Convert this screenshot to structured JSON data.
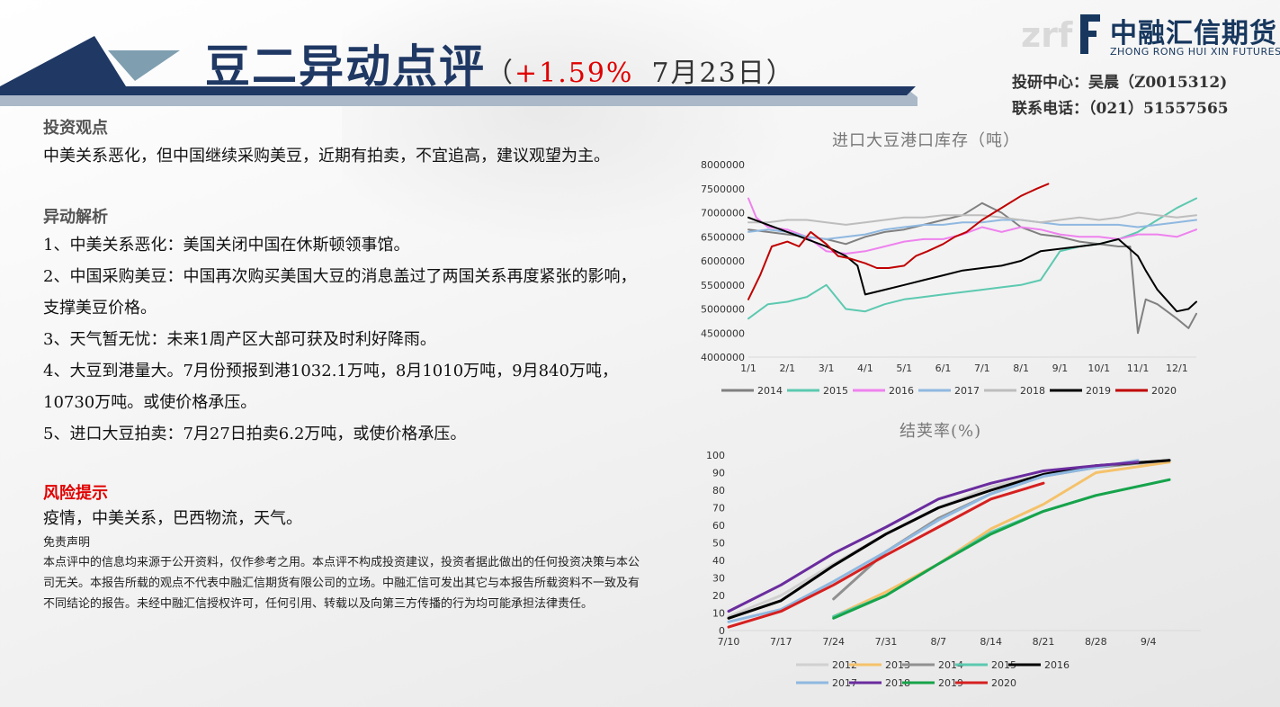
{
  "brand": {
    "cn": "中融汇信期货",
    "en": "ZHONG RONG HUI XIN FUTURES",
    "mark": "zrf"
  },
  "header": {
    "title": "豆二异动点评",
    "paren_open": "（",
    "change": "+1.59%",
    "date": "7月23日",
    "paren_close": "）"
  },
  "contact": {
    "line1": "投研中心：吴晨（Z0015312)",
    "line2": "联系电话：（021）51557565"
  },
  "colors": {
    "title": "#1f3864",
    "accent_red": "#e00000",
    "banner_dark": "#1f3864",
    "banner_light": "#7f9fb0"
  },
  "sections": {
    "view_title": "投资观点",
    "view_text": "中美关系恶化，但中国继续采购美豆，近期有拍卖，不宜追高，建议观望为主。",
    "analysis_title": "异动解析",
    "analysis_items": [
      "1、中美关系恶化：美国关闭中国在休斯顿领事馆。",
      "2、中国采购美豆：中国再次购买美国大豆的消息盖过了两国关系再度紧张的影响，支撑美豆价格。",
      "3、天气暂无忧：未来1周产区大部可获及时利好降雨。",
      "4、大豆到港量大。7月份预报到港1032.1万吨，8月1010万吨，9月840万吨，10730万吨。或使价格承压。",
      "5、进口大豆拍卖：7月27日拍卖6.2万吨，或使价格承压。"
    ],
    "risk_title": "风险提示",
    "risk_text": "疫情，中美关系，巴西物流，天气。",
    "disclaimer_title": "免责声明",
    "disclaimer_text": "本点评中的信息均来源于公开资料，仅作参考之用。本点评不构成投资建议，投资者据此做出的任何投资决策与本公司无关。本报告所载的观点不代表中融汇信期货有限公司的立场。中融汇信可发出其它与本报告所载资料不一致及有不同结论的报告。未经中融汇信授权许可，任何引用、转载以及向第三方传播的行为均可能承担法律责任。"
  },
  "chart_data": [
    {
      "type": "line",
      "title": "进口大豆港口库存（吨）",
      "x_labels": [
        "1/1",
        "2/1",
        "3/1",
        "4/1",
        "5/1",
        "6/1",
        "7/1",
        "8/1",
        "9/1",
        "10/1",
        "11/1",
        "12/1"
      ],
      "x_range": [
        1,
        12.5
      ],
      "ylim": [
        4000000,
        8000000
      ],
      "y_ticks": [
        4000000,
        4500000,
        5000000,
        5500000,
        6000000,
        6500000,
        7000000,
        7500000,
        8000000
      ],
      "grid": false,
      "legend_position": "bottom",
      "series": [
        {
          "name": "2014",
          "color": "#808080",
          "x": [
            1,
            1.5,
            2,
            2.5,
            3,
            3.5,
            4,
            4.5,
            5,
            5.5,
            6,
            6.5,
            7,
            7.5,
            8,
            8.5,
            9,
            9.5,
            10,
            10.5,
            10.8,
            11,
            11.2,
            11.5,
            12,
            12.3,
            12.5
          ],
          "values": [
            6650000,
            6600000,
            6550000,
            6500000,
            6450000,
            6350000,
            6500000,
            6600000,
            6650000,
            6750000,
            6850000,
            6950000,
            7200000,
            7000000,
            6700000,
            6550000,
            6500000,
            6400000,
            6350000,
            6300000,
            6300000,
            4500000,
            5200000,
            5100000,
            4800000,
            4600000,
            4900000
          ]
        },
        {
          "name": "2015",
          "color": "#5cc9b0",
          "x": [
            1,
            1.5,
            2,
            2.5,
            3,
            3.5,
            4,
            4.5,
            5,
            5.5,
            6,
            6.5,
            7,
            7.5,
            8,
            8.5,
            9,
            9.5,
            10,
            10.5,
            11,
            11.5,
            12,
            12.5
          ],
          "values": [
            4800000,
            5100000,
            5150000,
            5250000,
            5500000,
            5000000,
            4950000,
            5100000,
            5200000,
            5250000,
            5300000,
            5350000,
            5400000,
            5450000,
            5500000,
            5600000,
            6200000,
            6300000,
            6350000,
            6450000,
            6600000,
            6850000,
            7100000,
            7300000
          ]
        },
        {
          "name": "2016",
          "color": "#ee82ee",
          "x": [
            1,
            1.2,
            1.5,
            2,
            2.5,
            3,
            3.5,
            4,
            4.5,
            5,
            5.5,
            6,
            6.5,
            7,
            7.5,
            8,
            8.5,
            9,
            9.5,
            10,
            10.5,
            11,
            11.5,
            12,
            12.5
          ],
          "values": [
            7300000,
            6900000,
            6700000,
            6650000,
            6500000,
            6200000,
            6150000,
            6200000,
            6300000,
            6400000,
            6450000,
            6450000,
            6550000,
            6700000,
            6600000,
            6700000,
            6650000,
            6550000,
            6500000,
            6500000,
            6450000,
            6550000,
            6550000,
            6500000,
            6650000
          ]
        },
        {
          "name": "2017",
          "color": "#8fb8e0",
          "x": [
            1,
            1.5,
            2,
            2.5,
            3,
            3.5,
            4,
            4.5,
            5,
            5.5,
            6,
            6.5,
            7,
            7.5,
            8,
            8.5,
            9,
            9.5,
            10,
            10.5,
            11,
            11.5,
            12,
            12.5
          ],
          "values": [
            6600000,
            6650000,
            6600000,
            6500000,
            6450000,
            6500000,
            6550000,
            6650000,
            6700000,
            6750000,
            6750000,
            6800000,
            6800000,
            6850000,
            6850000,
            6800000,
            6750000,
            6750000,
            6750000,
            6750000,
            6700000,
            6750000,
            6800000,
            6850000
          ]
        },
        {
          "name": "2018",
          "color": "#bdbdbd",
          "x": [
            1,
            1.5,
            2,
            2.5,
            3,
            3.5,
            4,
            4.5,
            5,
            5.5,
            6,
            6.5,
            7,
            7.5,
            8,
            8.5,
            9,
            9.5,
            10,
            10.5,
            11,
            11.5,
            12,
            12.5
          ],
          "values": [
            6800000,
            6800000,
            6850000,
            6850000,
            6800000,
            6750000,
            6800000,
            6850000,
            6900000,
            6900000,
            6950000,
            6950000,
            6950000,
            6900000,
            6850000,
            6800000,
            6850000,
            6900000,
            6850000,
            6900000,
            7000000,
            6950000,
            6900000,
            6950000
          ]
        },
        {
          "name": "2019",
          "color": "#000000",
          "x": [
            1,
            1.5,
            2,
            2.5,
            3,
            3.5,
            3.8,
            4,
            4.5,
            5,
            5.5,
            6,
            6.5,
            7,
            7.5,
            8,
            8.5,
            9,
            9.5,
            10,
            10.5,
            11,
            11.2,
            11.5,
            12,
            12.3,
            12.5
          ],
          "values": [
            6900000,
            6750000,
            6600000,
            6450000,
            6300000,
            6100000,
            5900000,
            5300000,
            5400000,
            5500000,
            5600000,
            5700000,
            5800000,
            5850000,
            5900000,
            6000000,
            6200000,
            6250000,
            6300000,
            6350000,
            6450000,
            6100000,
            5800000,
            5400000,
            4950000,
            5000000,
            5150000
          ]
        },
        {
          "name": "2020",
          "color": "#c00000",
          "x": [
            1,
            1.3,
            1.6,
            2,
            2.3,
            2.6,
            3,
            3.3,
            3.6,
            4,
            4.3,
            4.6,
            5,
            5.3,
            5.6,
            6,
            6.3,
            6.6,
            7,
            7.3,
            7.6,
            8,
            8.4,
            8.7
          ],
          "values": [
            5200000,
            5700000,
            6300000,
            6400000,
            6300000,
            6600000,
            6350000,
            6100000,
            6050000,
            5950000,
            5850000,
            5850000,
            5900000,
            6100000,
            6200000,
            6350000,
            6500000,
            6600000,
            6850000,
            7000000,
            7150000,
            7350000,
            7500000,
            7600000
          ]
        }
      ]
    },
    {
      "type": "line",
      "title": "结荚率(%)",
      "x_labels": [
        "7/10",
        "7/17",
        "7/24",
        "7/31",
        "8/7",
        "8/14",
        "8/21",
        "8/28",
        "9/4"
      ],
      "x_range": [
        0,
        9
      ],
      "ylim": [
        0,
        100
      ],
      "y_ticks": [
        0,
        10,
        20,
        30,
        40,
        50,
        60,
        70,
        80,
        90,
        100
      ],
      "grid": false,
      "legend_position": "bottom",
      "series": [
        {
          "name": "2012",
          "color": "#d0d0d0",
          "x": [
            0,
            1,
            2,
            3,
            4,
            5,
            6,
            7,
            8.4
          ],
          "values": [
            8,
            20,
            38,
            55,
            70,
            82,
            89,
            94,
            97
          ]
        },
        {
          "name": "2013",
          "color": "#f5c26b",
          "x": [
            2,
            3,
            4,
            5,
            6,
            7,
            8.4
          ],
          "values": [
            8,
            22,
            38,
            58,
            72,
            90,
            96
          ]
        },
        {
          "name": "2014",
          "color": "#909090",
          "x": [
            2,
            3,
            4,
            5,
            6,
            7,
            8.4
          ],
          "values": [
            18,
            45,
            64,
            78,
            88,
            93,
            97
          ]
        },
        {
          "name": "2015",
          "color": "#5cc9b0",
          "x": [
            2,
            3,
            4,
            5,
            6,
            7,
            8.4
          ],
          "values": [
            8,
            20,
            38,
            56,
            68,
            77,
            86
          ]
        },
        {
          "name": "2016",
          "color": "#000000",
          "x": [
            0,
            1,
            2,
            3,
            4,
            5,
            6,
            7,
            8.4
          ],
          "values": [
            7,
            17,
            37,
            55,
            70,
            80,
            89,
            94,
            97
          ]
        },
        {
          "name": "2017",
          "color": "#8fb8e0",
          "x": [
            0,
            1,
            2,
            3,
            4,
            5,
            6,
            7,
            7.8
          ],
          "values": [
            5,
            12,
            28,
            45,
            63,
            78,
            88,
            93,
            97
          ]
        },
        {
          "name": "2018",
          "color": "#6a2c9e",
          "x": [
            0,
            1,
            2,
            3,
            4,
            5,
            6,
            7,
            7.8
          ],
          "values": [
            11,
            26,
            44,
            59,
            75,
            84,
            91,
            94,
            96
          ]
        },
        {
          "name": "2019",
          "color": "#17a34a",
          "x": [
            2,
            3,
            4,
            5,
            6,
            7,
            8.4
          ],
          "values": [
            7,
            20,
            38,
            55,
            68,
            77,
            86
          ]
        },
        {
          "name": "2020",
          "color": "#d62020",
          "x": [
            0,
            1,
            2,
            3,
            4,
            5,
            6
          ],
          "values": [
            2,
            11,
            26,
            43,
            59,
            75,
            84
          ]
        }
      ]
    }
  ]
}
